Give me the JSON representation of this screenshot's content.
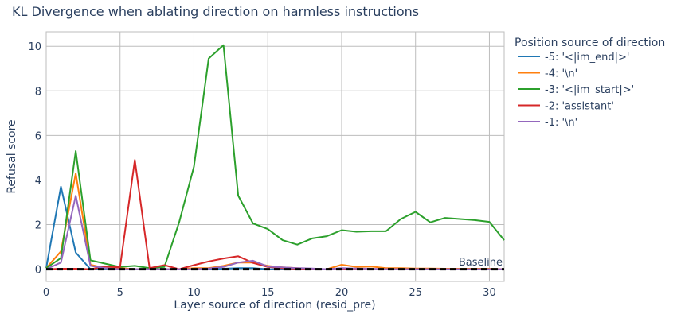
{
  "chart_data": {
    "type": "line",
    "title": "KL Divergence when ablating direction on harmless instructions",
    "xlabel": "Layer source of direction (resid_pre)",
    "ylabel": "Refusal score",
    "xlim": [
      0,
      31
    ],
    "ylim": [
      -0.55,
      10.65
    ],
    "xticks": [
      0,
      5,
      10,
      15,
      20,
      25,
      30
    ],
    "yticks": [
      0,
      2,
      4,
      6,
      8,
      10
    ],
    "grid": true,
    "legend_title": "Position source of direction",
    "legend_position": "right",
    "x": [
      0,
      1,
      2,
      3,
      4,
      5,
      6,
      7,
      8,
      9,
      10,
      11,
      12,
      13,
      14,
      15,
      16,
      17,
      18,
      19,
      20,
      21,
      22,
      23,
      24,
      25,
      26,
      27,
      28,
      29,
      30,
      31
    ],
    "series": [
      {
        "name": "-5: '<|im_end|>'",
        "color": "#1f77b4",
        "values": [
          0.05,
          3.7,
          0.75,
          0.0,
          0.0,
          0.0,
          0.0,
          0.0,
          0.0,
          0.0,
          0.0,
          0.0,
          0.02,
          0.05,
          0.05,
          0.0,
          0.0,
          0.0,
          0.0,
          0.0,
          0.02,
          0.0,
          0.0,
          0.0,
          0.0,
          0.0,
          0.0,
          0.0,
          0.0,
          0.0,
          0.0,
          0.0
        ]
      },
      {
        "name": "-4: '\\n'",
        "color": "#ff7f0e",
        "values": [
          0.05,
          0.8,
          4.3,
          0.2,
          0.05,
          0.05,
          0.0,
          0.0,
          0.0,
          0.0,
          0.05,
          0.05,
          0.15,
          0.3,
          0.3,
          0.15,
          0.08,
          0.05,
          0.0,
          0.0,
          0.2,
          0.1,
          0.12,
          0.05,
          0.05,
          0.03,
          0.03,
          0.02,
          0.02,
          0.02,
          0.02,
          0.0
        ]
      },
      {
        "name": "-3: '<|im_start|>'",
        "color": "#2ca02c",
        "values": [
          0.05,
          0.5,
          5.3,
          0.4,
          0.25,
          0.1,
          0.15,
          0.05,
          0.1,
          2.1,
          4.6,
          9.45,
          10.05,
          3.3,
          2.05,
          1.8,
          1.3,
          1.1,
          1.38,
          1.48,
          1.75,
          1.68,
          1.7,
          1.7,
          2.25,
          2.57,
          2.1,
          2.3,
          2.25,
          2.2,
          2.12,
          1.3
        ]
      },
      {
        "name": "-2: 'assistant'",
        "color": "#d62728",
        "values": [
          0.0,
          0.02,
          0.02,
          0.0,
          0.12,
          0.08,
          4.9,
          0.05,
          0.18,
          0.0,
          0.18,
          0.35,
          0.48,
          0.58,
          0.28,
          0.1,
          0.05,
          0.02,
          0.0,
          0.0,
          0.0,
          0.0,
          0.0,
          0.0,
          0.0,
          0.0,
          0.0,
          0.0,
          0.0,
          0.0,
          0.0,
          0.0
        ]
      },
      {
        "name": "-1: '\\n'",
        "color": "#9467bd",
        "values": [
          0.0,
          0.3,
          3.3,
          0.15,
          0.05,
          0.0,
          0.0,
          0.0,
          0.0,
          0.0,
          0.0,
          0.03,
          0.1,
          0.3,
          0.38,
          0.12,
          0.08,
          0.05,
          0.03,
          0.0,
          0.05,
          0.03,
          0.02,
          0.0,
          0.0,
          0.0,
          0.0,
          0.0,
          0.0,
          0.0,
          0.0,
          0.0
        ]
      }
    ],
    "baseline": {
      "label": "Baseline",
      "value": 0,
      "color": "#000000",
      "dash": "dashed"
    }
  }
}
